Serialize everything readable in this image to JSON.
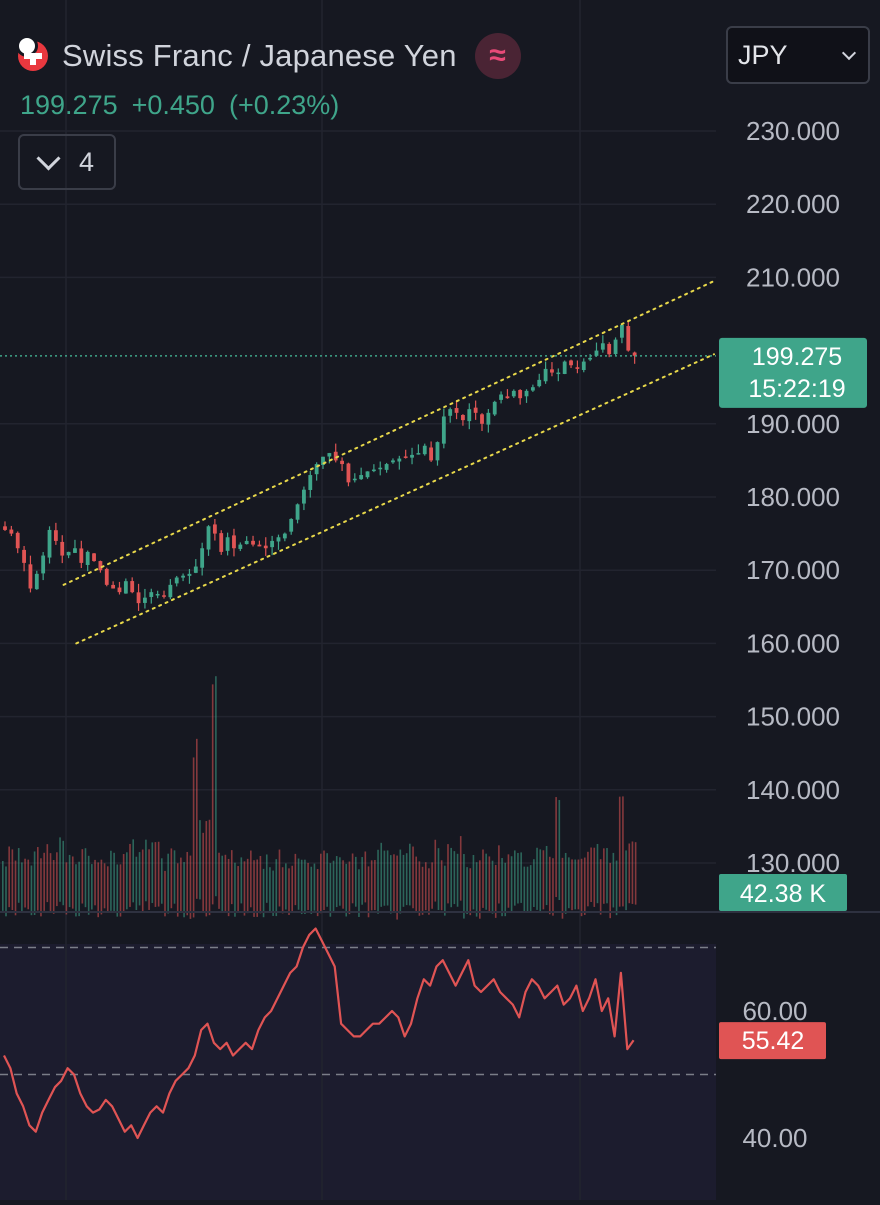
{
  "header": {
    "symbol_title": "Swiss Franc / Japanese Yen",
    "last_price": "199.275",
    "change": "+0.450",
    "change_pct": "(+0.23%)",
    "indicator_count": "4",
    "currency": "JPY",
    "up_color": "#3fa58a",
    "down_color": "#e05454"
  },
  "price_axis": {
    "ticks": [
      "230.000",
      "220.000",
      "210.000",
      "190.000",
      "180.000",
      "170.000",
      "160.000",
      "150.000",
      "140.000",
      "130.000"
    ]
  },
  "price_label": {
    "value": "199.275",
    "countdown": "15:22:19"
  },
  "volume_label": "42.38 K",
  "rsi_axis": {
    "ticks": [
      "60.00",
      "40.00"
    ]
  },
  "rsi_label": "55.42",
  "chart_data": [
    {
      "type": "candlestick",
      "title": "Swiss Franc / Japanese Yen",
      "ylim": [
        128,
        236
      ],
      "yticks": [
        230,
        220,
        210,
        190,
        180,
        170,
        160,
        150,
        140,
        130
      ],
      "last_price": 199.275,
      "close_path": [
        [
          0,
          176
        ],
        [
          2,
          175
        ],
        [
          4,
          171
        ],
        [
          5,
          167.5
        ],
        [
          6,
          169.5
        ],
        [
          7,
          172
        ],
        [
          8,
          175.5
        ],
        [
          9,
          174
        ],
        [
          10,
          172
        ],
        [
          12,
          173
        ],
        [
          13,
          171
        ],
        [
          14,
          172.5
        ],
        [
          16,
          170
        ],
        [
          17,
          168
        ],
        [
          19,
          167
        ],
        [
          20,
          168.5
        ],
        [
          22,
          165.5
        ],
        [
          24,
          167
        ],
        [
          26,
          166.5
        ],
        [
          27,
          168
        ],
        [
          28,
          169
        ],
        [
          30,
          169.5
        ],
        [
          31,
          170.5
        ],
        [
          32,
          173
        ],
        [
          33,
          176
        ],
        [
          34,
          175
        ],
        [
          35,
          172.5
        ],
        [
          36,
          174.5
        ],
        [
          37,
          173
        ],
        [
          39,
          174
        ],
        [
          40,
          173.5
        ],
        [
          42,
          173
        ],
        [
          43,
          174
        ],
        [
          45,
          175
        ],
        [
          46,
          177
        ],
        [
          47,
          179
        ],
        [
          48,
          181
        ],
        [
          49,
          183
        ],
        [
          50,
          184.5
        ],
        [
          51,
          185.5
        ],
        [
          52,
          186
        ],
        [
          53,
          185
        ],
        [
          54,
          184.5
        ],
        [
          55,
          182
        ],
        [
          56,
          182.5
        ],
        [
          57,
          183
        ],
        [
          58,
          183.5
        ],
        [
          60,
          184
        ],
        [
          61,
          184.5
        ],
        [
          62,
          185
        ],
        [
          64,
          185.5
        ],
        [
          66,
          186
        ],
        [
          67,
          187
        ],
        [
          68,
          185
        ],
        [
          69,
          187.5
        ],
        [
          70,
          191
        ],
        [
          71,
          192
        ],
        [
          72,
          191.5
        ],
        [
          73,
          190.5
        ],
        [
          74,
          192
        ],
        [
          75,
          191.5
        ],
        [
          76,
          190
        ],
        [
          77,
          191.5
        ],
        [
          78,
          193
        ],
        [
          79,
          194
        ],
        [
          80,
          193.5
        ],
        [
          81,
          194.5
        ],
        [
          82,
          193.5
        ],
        [
          83,
          194.5
        ],
        [
          84,
          195
        ],
        [
          85,
          196
        ],
        [
          86,
          197.5
        ],
        [
          87,
          197
        ],
        [
          88,
          197
        ],
        [
          89,
          198.5
        ],
        [
          90,
          198
        ],
        [
          91,
          197.5
        ],
        [
          92,
          198.5
        ],
        [
          93,
          199
        ],
        [
          94,
          200
        ],
        [
          95,
          201
        ],
        [
          96,
          199.5
        ],
        [
          97,
          201.5
        ],
        [
          98,
          203.5
        ],
        [
          99,
          200
        ],
        [
          100,
          199.3
        ]
      ],
      "channel": {
        "upper": [
          [
            167,
            209.5
          ],
          [
            4,
            168
          ]
        ],
        "lower": [
          [
            159,
            199.5
          ],
          [
            6,
            160
          ]
        ]
      },
      "volume": {
        "last": "42.38 K"
      }
    },
    {
      "type": "line",
      "title": "RSI",
      "ylim": [
        35,
        80
      ],
      "yticks": [
        60,
        40
      ],
      "bands": [
        70,
        50
      ],
      "last_value": 55.42,
      "y": [
        53,
        51,
        47,
        45,
        42,
        41,
        44,
        46,
        48,
        49,
        51,
        50,
        47,
        45,
        44,
        44.5,
        46,
        45,
        43,
        41,
        42,
        40,
        42,
        44,
        45,
        44,
        47,
        49,
        50,
        51,
        53,
        57,
        58,
        55,
        54,
        55,
        53,
        54,
        55,
        54,
        57,
        59,
        60,
        62,
        64,
        66,
        67,
        70,
        72,
        73,
        71,
        69,
        67,
        58,
        57,
        56,
        56,
        57,
        58,
        58,
        59,
        60,
        59,
        56,
        58,
        62,
        65,
        64,
        67,
        68,
        66,
        64,
        66,
        68,
        64,
        63,
        64,
        65,
        63,
        62,
        61,
        59,
        63,
        65,
        64,
        62,
        63,
        64,
        61,
        62,
        64,
        60,
        62,
        65,
        60,
        62,
        56,
        66,
        54,
        55.4
      ]
    }
  ]
}
